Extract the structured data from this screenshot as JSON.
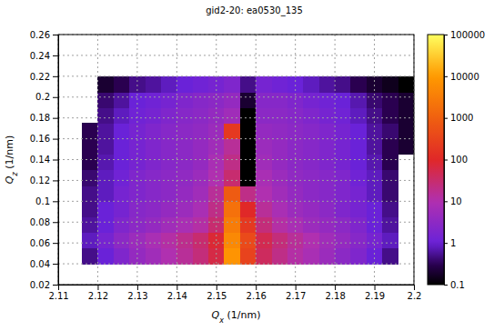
{
  "chart_data": {
    "type": "heatmap",
    "title": "gid2-20: ea0530_135",
    "x_label": "Qx (1/nm)",
    "y_label": "Qz (1/nm)",
    "xlim": [
      2.11,
      2.2
    ],
    "xticks": [
      2.11,
      2.12,
      2.13,
      2.14,
      2.15,
      2.16,
      2.17,
      2.18,
      2.19,
      2.2
    ],
    "ylim": [
      0.02,
      0.26
    ],
    "yticks": [
      0.02,
      0.04,
      0.06,
      0.08,
      0.1,
      0.12,
      0.14,
      0.16,
      0.18,
      0.2,
      0.22,
      0.24,
      0.26
    ],
    "grid": true,
    "heatmap": {
      "x_edges": [
        2.116,
        2.12,
        2.124,
        2.128,
        2.132,
        2.136,
        2.14,
        2.144,
        2.148,
        2.152,
        2.156,
        2.16,
        2.164,
        2.168,
        2.172,
        2.176,
        2.18,
        2.184,
        2.188,
        2.192,
        2.196,
        2.2
      ],
      "y_edges": [
        0.04,
        0.055,
        0.07,
        0.085,
        0.1,
        0.115,
        0.13,
        0.145,
        0.16,
        0.175,
        0.19,
        0.205,
        0.22
      ],
      "values": [
        [
          0.5,
          1,
          2,
          4,
          6,
          10,
          15,
          25,
          60,
          8000,
          300,
          40,
          20,
          12,
          8,
          5,
          3,
          2,
          1,
          0.5,
          null
        ],
        [
          0.8,
          1.5,
          3,
          5,
          8,
          12,
          18,
          30,
          80,
          5000,
          400,
          50,
          25,
          15,
          10,
          6,
          4,
          2.5,
          1.5,
          0.8,
          null
        ],
        [
          0.6,
          1,
          2,
          3,
          4,
          6,
          8,
          12,
          30,
          3000,
          200,
          25,
          12,
          8,
          5,
          4,
          3,
          2,
          1,
          0.6,
          null
        ],
        [
          0.5,
          1,
          1.5,
          2.5,
          3,
          4,
          5,
          8,
          20,
          2000,
          100,
          15,
          8,
          5,
          4,
          3,
          2,
          1.5,
          1,
          0.5,
          null
        ],
        [
          0.5,
          0.8,
          1.5,
          2,
          2.5,
          3,
          4,
          6,
          15,
          800,
          20,
          10,
          6,
          4,
          3,
          2.5,
          2,
          1.5,
          0.8,
          0.4,
          null
        ],
        [
          0.4,
          0.8,
          1.2,
          2,
          2.5,
          3,
          3.5,
          5,
          10,
          30,
          0.1,
          8,
          5,
          3.5,
          3,
          2.5,
          2,
          1.2,
          0.8,
          0.4,
          null
        ],
        [
          0.3,
          0.7,
          1,
          1.5,
          2,
          2.5,
          3,
          4,
          8,
          20,
          0.1,
          6,
          4,
          3,
          2.5,
          2,
          1.5,
          1,
          0.7,
          0.3,
          null
        ],
        [
          0.3,
          0.6,
          1,
          1.5,
          2,
          2.5,
          3,
          4,
          6,
          15,
          0.1,
          5,
          4,
          3,
          2.5,
          2,
          1.5,
          1,
          0.6,
          0.3,
          0.2
        ],
        [
          0.3,
          0.6,
          1,
          1.5,
          2,
          2.5,
          3,
          3.5,
          5,
          200,
          0.1,
          4,
          3.5,
          3,
          2.5,
          2,
          1.5,
          1,
          0.6,
          0.4,
          0.2
        ],
        [
          null,
          0.5,
          0.8,
          1.2,
          1.5,
          2,
          2.5,
          3,
          4,
          6,
          0.1,
          3,
          3,
          2.5,
          2,
          1.5,
          1.2,
          0.8,
          0.5,
          0.3,
          0.2
        ],
        [
          null,
          0.4,
          0.6,
          1,
          1.2,
          1.5,
          2,
          2.5,
          3,
          4,
          0.2,
          2.5,
          2.5,
          2,
          1.5,
          1.2,
          1,
          0.7,
          0.4,
          0.3,
          0.2
        ],
        [
          null,
          0.2,
          0.3,
          0.5,
          0.6,
          0.8,
          1,
          1.2,
          1.5,
          2,
          0.5,
          1.5,
          1.2,
          1,
          0.8,
          0.6,
          0.5,
          0.3,
          0.2,
          0.15,
          0.1
        ]
      ]
    },
    "colorbar": {
      "log": true,
      "range": [
        0.1,
        100000
      ],
      "ticks": [
        0.1,
        1,
        10,
        100,
        1000,
        10000,
        100000
      ]
    }
  }
}
